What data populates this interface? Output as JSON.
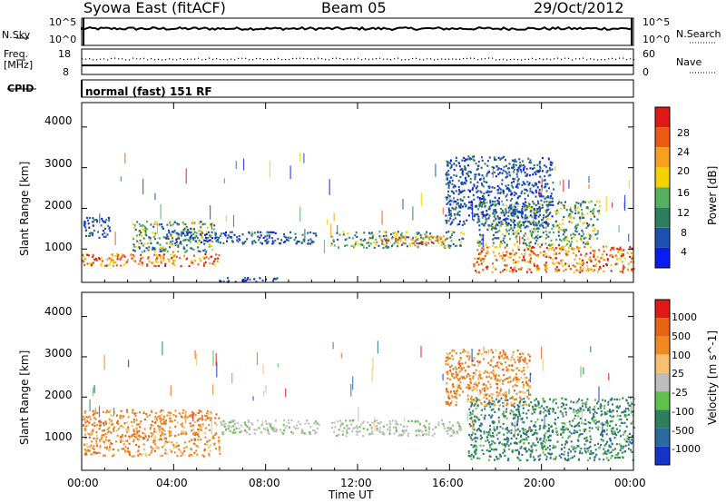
{
  "header": {
    "station": "Syowa East (fitACF)",
    "beam": "Beam 05",
    "date": "29/Oct/2012"
  },
  "strip_nsky": {
    "left_label": "N.Sky",
    "left_top": "10^5",
    "left_bottom": "10^0",
    "right_top": "10^5",
    "right_bottom": "10^0",
    "right_label": "N.Search"
  },
  "strip_freq": {
    "label_line1": "Freq.",
    "label_line2": "[MHz]",
    "left_top": "18",
    "left_bottom": "8",
    "right_top": "60",
    "right_bottom": "0",
    "right_label": "Nave"
  },
  "strip_cpid": {
    "label": "CPID",
    "text": "normal (fast) 151 RF"
  },
  "chart_data": [
    {
      "type": "heatmap",
      "panel": "power",
      "ylabel": "Slant Range [km]",
      "xlabel": "Time UT",
      "xlim_hours": [
        0,
        24
      ],
      "ylim_km": [
        180,
        4600
      ],
      "yticks": [
        "1000",
        "2000",
        "3000",
        "4000"
      ],
      "xticks": [
        "00:00",
        "04:00",
        "08:00",
        "12:00",
        "16:00",
        "20:00",
        "00:00"
      ],
      "colorbar": {
        "label": "Power [dB]",
        "ticks": [
          "4",
          "8",
          "12",
          "16",
          "20",
          "24",
          "28"
        ],
        "colors": [
          "#0b1cf0",
          "#1d4fae",
          "#2f7f5f",
          "#55b060",
          "#f4d200",
          "#f7a020",
          "#ee5a14",
          "#e01818"
        ]
      },
      "echo_bands": [
        {
          "t0": 0.0,
          "t1": 6.0,
          "r0": 600,
          "r1": 900,
          "level": "strong"
        },
        {
          "t0": 2.2,
          "t1": 5.8,
          "r0": 950,
          "r1": 1700,
          "level": "medium"
        },
        {
          "t0": 0.0,
          "t1": 1.2,
          "r0": 1300,
          "r1": 1800,
          "level": "weak"
        },
        {
          "t0": 3.6,
          "t1": 10.2,
          "r0": 1150,
          "r1": 1450,
          "level": "weak"
        },
        {
          "t0": 10.8,
          "t1": 16.6,
          "r0": 1050,
          "r1": 1450,
          "level": "medium"
        },
        {
          "t0": 13.0,
          "t1": 16.0,
          "r0": 1150,
          "r1": 1350,
          "level": "strong"
        },
        {
          "t0": 17.0,
          "t1": 24.0,
          "r0": 450,
          "r1": 1100,
          "level": "strong"
        },
        {
          "t0": 17.2,
          "t1": 22.5,
          "r0": 1100,
          "r1": 2200,
          "level": "medium"
        },
        {
          "t0": 15.8,
          "t1": 20.5,
          "r0": 1600,
          "r1": 3300,
          "level": "weak"
        },
        {
          "t0": 6.0,
          "t1": 8.5,
          "r0": 200,
          "r1": 320,
          "level": "weak"
        }
      ]
    },
    {
      "type": "heatmap",
      "panel": "velocity",
      "ylabel": "Slant Range [km]",
      "xlabel": "Time UT",
      "xlim_hours": [
        0,
        24
      ],
      "ylim_km": [
        180,
        4600
      ],
      "yticks": [
        "1000",
        "2000",
        "3000",
        "4000"
      ],
      "xticks": [
        "00:00",
        "04:00",
        "08:00",
        "12:00",
        "16:00",
        "20:00",
        "00:00"
      ],
      "colorbar": {
        "label": "Velocity [m s^-1]",
        "ticks": [
          "1000",
          "500",
          "100",
          "25",
          "-25",
          "-100",
          "-500",
          "-1000"
        ],
        "colors": [
          "#1533c8",
          "#2a6a9e",
          "#2f7f5f",
          "#5fc04a",
          "#bdbdbd",
          "#f6c070",
          "#ef8a20",
          "#e86414",
          "#e01818"
        ]
      },
      "echo_bands": [
        {
          "t0": 0.0,
          "t1": 6.0,
          "r0": 550,
          "r1": 1700,
          "level": "away"
        },
        {
          "t0": 6.0,
          "t1": 10.3,
          "r0": 1100,
          "r1": 1450,
          "level": "ground"
        },
        {
          "t0": 10.8,
          "t1": 16.5,
          "r0": 1050,
          "r1": 1450,
          "level": "ground"
        },
        {
          "t0": 16.8,
          "t1": 24.0,
          "r0": 450,
          "r1": 2000,
          "level": "toward"
        },
        {
          "t0": 15.8,
          "t1": 19.5,
          "r0": 1800,
          "r1": 3200,
          "level": "away"
        }
      ]
    }
  ]
}
